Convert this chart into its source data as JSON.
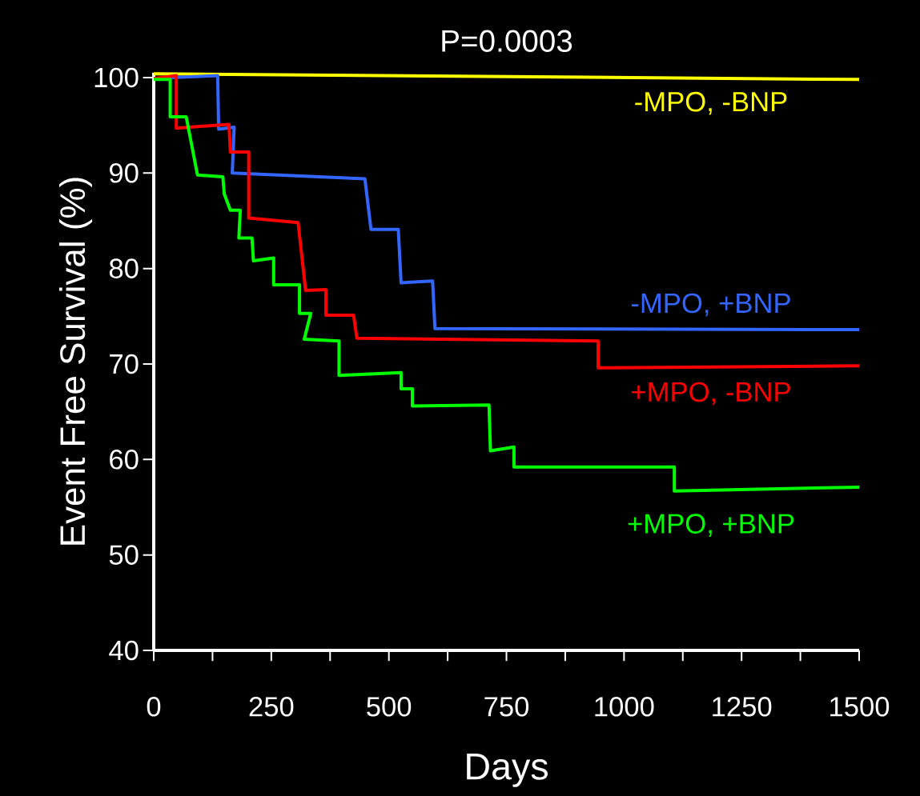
{
  "chart_data": {
    "type": "line",
    "title": "P=0.0003",
    "xlabel": "Days",
    "ylabel": "Event Free Survival (%)",
    "xlim": [
      0,
      1500
    ],
    "ylim": [
      40,
      100.5
    ],
    "xticks": [
      0,
      {
        "value": 125,
        "label": null
      },
      250,
      {
        "value": 375,
        "label": null
      },
      500,
      {
        "value": 625,
        "label": null
      },
      750,
      {
        "value": 875,
        "label": null
      },
      1000,
      {
        "value": 1125,
        "label": null
      },
      1250,
      {
        "value": 1375,
        "label": null
      },
      1500
    ],
    "yticks": [
      40,
      50,
      60,
      70,
      80,
      90,
      100
    ],
    "grid": false,
    "legend": false,
    "marker": "none",
    "line_style": "solid",
    "series": [
      {
        "name": "-MPO, -BNP",
        "color": "#ffff00",
        "x": [
          0,
          1500
        ],
        "values": [
          100.4,
          99.8
        ]
      },
      {
        "name": "-MPO, +BNP",
        "color": "#3366ff",
        "x": [
          36,
          136,
          138,
          171,
          167,
          449,
          462,
          520,
          526,
          593,
          598,
          1500
        ],
        "values": [
          100.0,
          100.2,
          94.6,
          94.8,
          90.0,
          89.4,
          84.1,
          84.1,
          78.5,
          78.7,
          73.7,
          73.6
        ]
      },
      {
        "name": "+MPO, -BNP",
        "color": "#ff0000",
        "x": [
          0,
          48,
          48,
          160,
          163,
          202,
          202,
          307,
          323,
          366,
          366,
          425,
          432,
          945,
          945,
          1500
        ],
        "values": [
          99.9,
          100.2,
          94.7,
          95.1,
          92.2,
          92.2,
          85.3,
          84.8,
          77.7,
          77.8,
          75.1,
          75.1,
          72.7,
          72.4,
          69.6,
          69.8
        ]
      },
      {
        "name": "+MPO, +BNP",
        "color": "#00ff00",
        "x": [
          0,
          35,
          35,
          69,
          93,
          147,
          150,
          163,
          184,
          181,
          209,
          212,
          255,
          255,
          310,
          310,
          334,
          320,
          394,
          394,
          526,
          526,
          550,
          550,
          713,
          716,
          766,
          766,
          1107,
          1107,
          1500
        ],
        "values": [
          99.8,
          99.8,
          95.9,
          95.9,
          89.8,
          89.6,
          87.8,
          86.1,
          86.1,
          83.2,
          83.2,
          80.8,
          81.1,
          78.3,
          78.3,
          75.3,
          75.3,
          72.6,
          72.4,
          68.8,
          69.1,
          67.4,
          67.4,
          65.6,
          65.7,
          60.9,
          61.3,
          59.2,
          59.2,
          56.7,
          57.1
        ]
      }
    ]
  }
}
